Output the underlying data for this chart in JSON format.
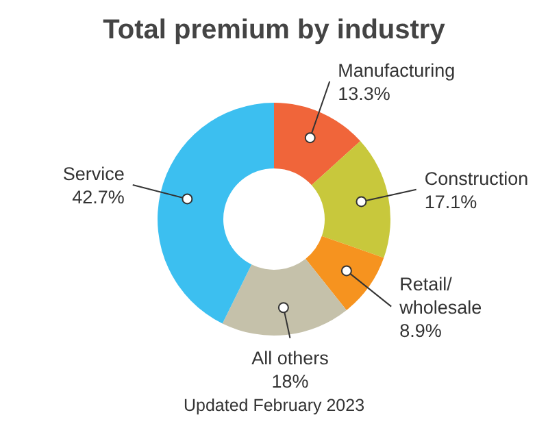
{
  "chart_data": {
    "type": "donut",
    "title": "Total premium by industry",
    "categories": [
      "Manufacturing",
      "Construction",
      "Retail/wholesale",
      "All others",
      "Service"
    ],
    "values": [
      13.3,
      17.1,
      8.9,
      18,
      42.7
    ],
    "colors": [
      "#f0653a",
      "#c8c83c",
      "#f6931f",
      "#c5c1aa",
      "#3cbff0"
    ],
    "value_labels": [
      "13.3%",
      "17.1%",
      "8.9%",
      "18%",
      "42.7%"
    ],
    "annotations": [
      "Updated February 2023"
    ]
  }
}
